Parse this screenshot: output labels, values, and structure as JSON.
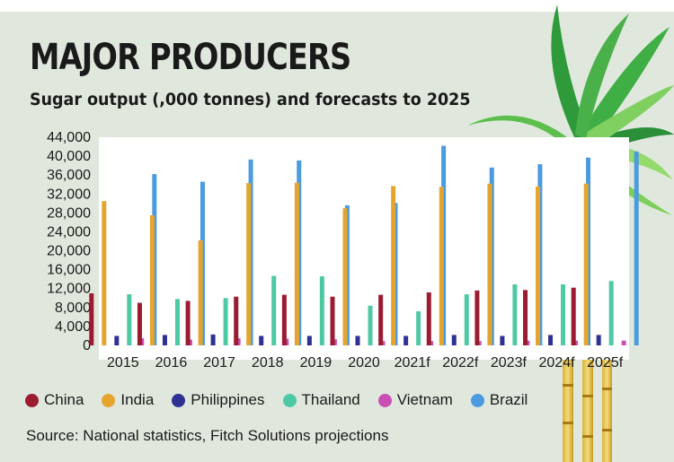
{
  "title": "MAJOR PRODUCERS",
  "subtitle": "Sugar output (,000 tonnes) and forecasts to 2025",
  "source": "Source: National statistics, Fitch Solutions projections",
  "chart_data": {
    "type": "bar",
    "title": "MAJOR PRODUCERS",
    "subtitle": "Sugar output (,000 tonnes) and forecasts to 2025",
    "xlabel": "",
    "ylabel": "",
    "ylim": [
      0,
      44000
    ],
    "yticks": [
      "0",
      "4,000",
      "8,000",
      "12,000",
      "16,000",
      "20,000",
      "24,000",
      "28,000",
      "32,000",
      "36,000",
      "40,000",
      "44,000"
    ],
    "ytick_values": [
      0,
      4000,
      8000,
      12000,
      16000,
      20000,
      24000,
      28000,
      32000,
      36000,
      40000,
      44000
    ],
    "categories": [
      "2015",
      "2016",
      "2017",
      "2018",
      "2019",
      "2020",
      "2021f",
      "2022f",
      "2023f",
      "2024f",
      "2025f"
    ],
    "series": [
      {
        "name": "China",
        "color": "#9b1b30",
        "values": [
          11000,
          9000,
          9400,
          10300,
          10700,
          10300,
          10700,
          11200,
          11600,
          11700,
          12200
        ]
      },
      {
        "name": "India",
        "color": "#e5a52c",
        "values": [
          30500,
          27500,
          22200,
          34300,
          34400,
          29000,
          33700,
          33500,
          34200,
          33600,
          34200
        ]
      },
      {
        "name": "Philippines",
        "color": "#2e3192",
        "values": [
          2000,
          2200,
          2300,
          2000,
          2000,
          2000,
          2000,
          2200,
          2000,
          2200,
          2200
        ]
      },
      {
        "name": "Thailand",
        "color": "#4dc9a4",
        "values": [
          10800,
          9800,
          10000,
          14700,
          14600,
          8400,
          7200,
          10800,
          12900,
          12900,
          13600
        ]
      },
      {
        "name": "Vietnam",
        "color": "#c94fb5",
        "values": [
          1500,
          1200,
          1500,
          1400,
          1300,
          900,
          900,
          900,
          1000,
          1000,
          1000
        ]
      },
      {
        "name": "Brazil",
        "color": "#4b9be0",
        "values": [
          36200,
          34600,
          39300,
          39100,
          29600,
          30100,
          42200,
          37600,
          38300,
          39700,
          41000
        ]
      }
    ],
    "legend_position": "bottom"
  }
}
